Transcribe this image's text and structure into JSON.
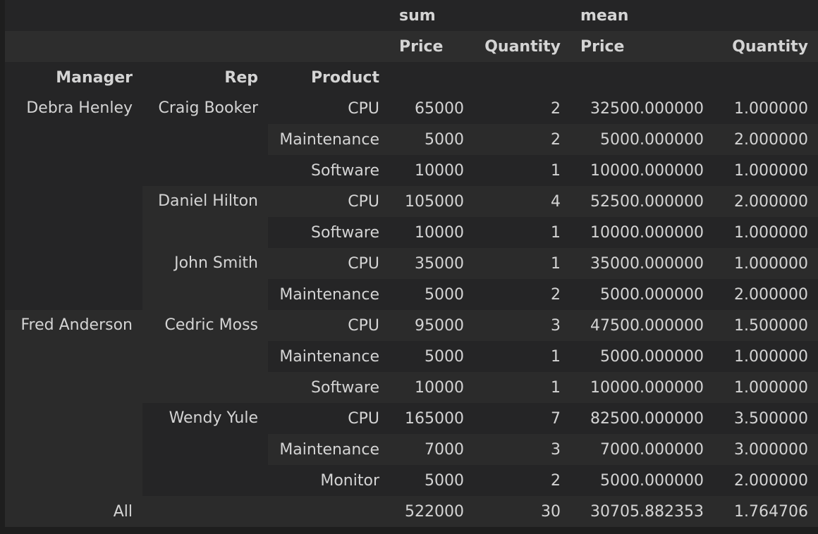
{
  "header": {
    "group_sum": "sum",
    "group_mean": "mean",
    "col_price": "Price",
    "col_quantity": "Quantity",
    "index_manager": "Manager",
    "index_rep": "Rep",
    "index_product": "Product"
  },
  "managers": [
    "Debra Henley",
    "Fred Anderson"
  ],
  "reps": [
    "Craig Booker",
    "Daniel Hilton",
    "John Smith",
    "Cedric Moss",
    "Wendy Yule"
  ],
  "rows": [
    {
      "product": "CPU",
      "sum_price": "65000",
      "sum_qty": "2",
      "mean_price": "32500.000000",
      "mean_qty": "1.000000"
    },
    {
      "product": "Maintenance",
      "sum_price": "5000",
      "sum_qty": "2",
      "mean_price": "5000.000000",
      "mean_qty": "2.000000"
    },
    {
      "product": "Software",
      "sum_price": "10000",
      "sum_qty": "1",
      "mean_price": "10000.000000",
      "mean_qty": "1.000000"
    },
    {
      "product": "CPU",
      "sum_price": "105000",
      "sum_qty": "4",
      "mean_price": "52500.000000",
      "mean_qty": "2.000000"
    },
    {
      "product": "Software",
      "sum_price": "10000",
      "sum_qty": "1",
      "mean_price": "10000.000000",
      "mean_qty": "1.000000"
    },
    {
      "product": "CPU",
      "sum_price": "35000",
      "sum_qty": "1",
      "mean_price": "35000.000000",
      "mean_qty": "1.000000"
    },
    {
      "product": "Maintenance",
      "sum_price": "5000",
      "sum_qty": "2",
      "mean_price": "5000.000000",
      "mean_qty": "2.000000"
    },
    {
      "product": "CPU",
      "sum_price": "95000",
      "sum_qty": "3",
      "mean_price": "47500.000000",
      "mean_qty": "1.500000"
    },
    {
      "product": "Maintenance",
      "sum_price": "5000",
      "sum_qty": "1",
      "mean_price": "5000.000000",
      "mean_qty": "1.000000"
    },
    {
      "product": "Software",
      "sum_price": "10000",
      "sum_qty": "1",
      "mean_price": "10000.000000",
      "mean_qty": "1.000000"
    },
    {
      "product": "CPU",
      "sum_price": "165000",
      "sum_qty": "7",
      "mean_price": "82500.000000",
      "mean_qty": "3.500000"
    },
    {
      "product": "Maintenance",
      "sum_price": "7000",
      "sum_qty": "3",
      "mean_price": "7000.000000",
      "mean_qty": "3.000000"
    },
    {
      "product": "Monitor",
      "sum_price": "5000",
      "sum_qty": "2",
      "mean_price": "5000.000000",
      "mean_qty": "2.000000"
    }
  ],
  "total": {
    "label": "All",
    "sum_price": "522000",
    "sum_qty": "30",
    "mean_price": "30705.882353",
    "mean_qty": "1.764706"
  },
  "colors": {
    "background": "#1e1e1e",
    "row_dark": "#252526",
    "row_light": "#2b2b2b",
    "text": "#d4d4d4"
  }
}
